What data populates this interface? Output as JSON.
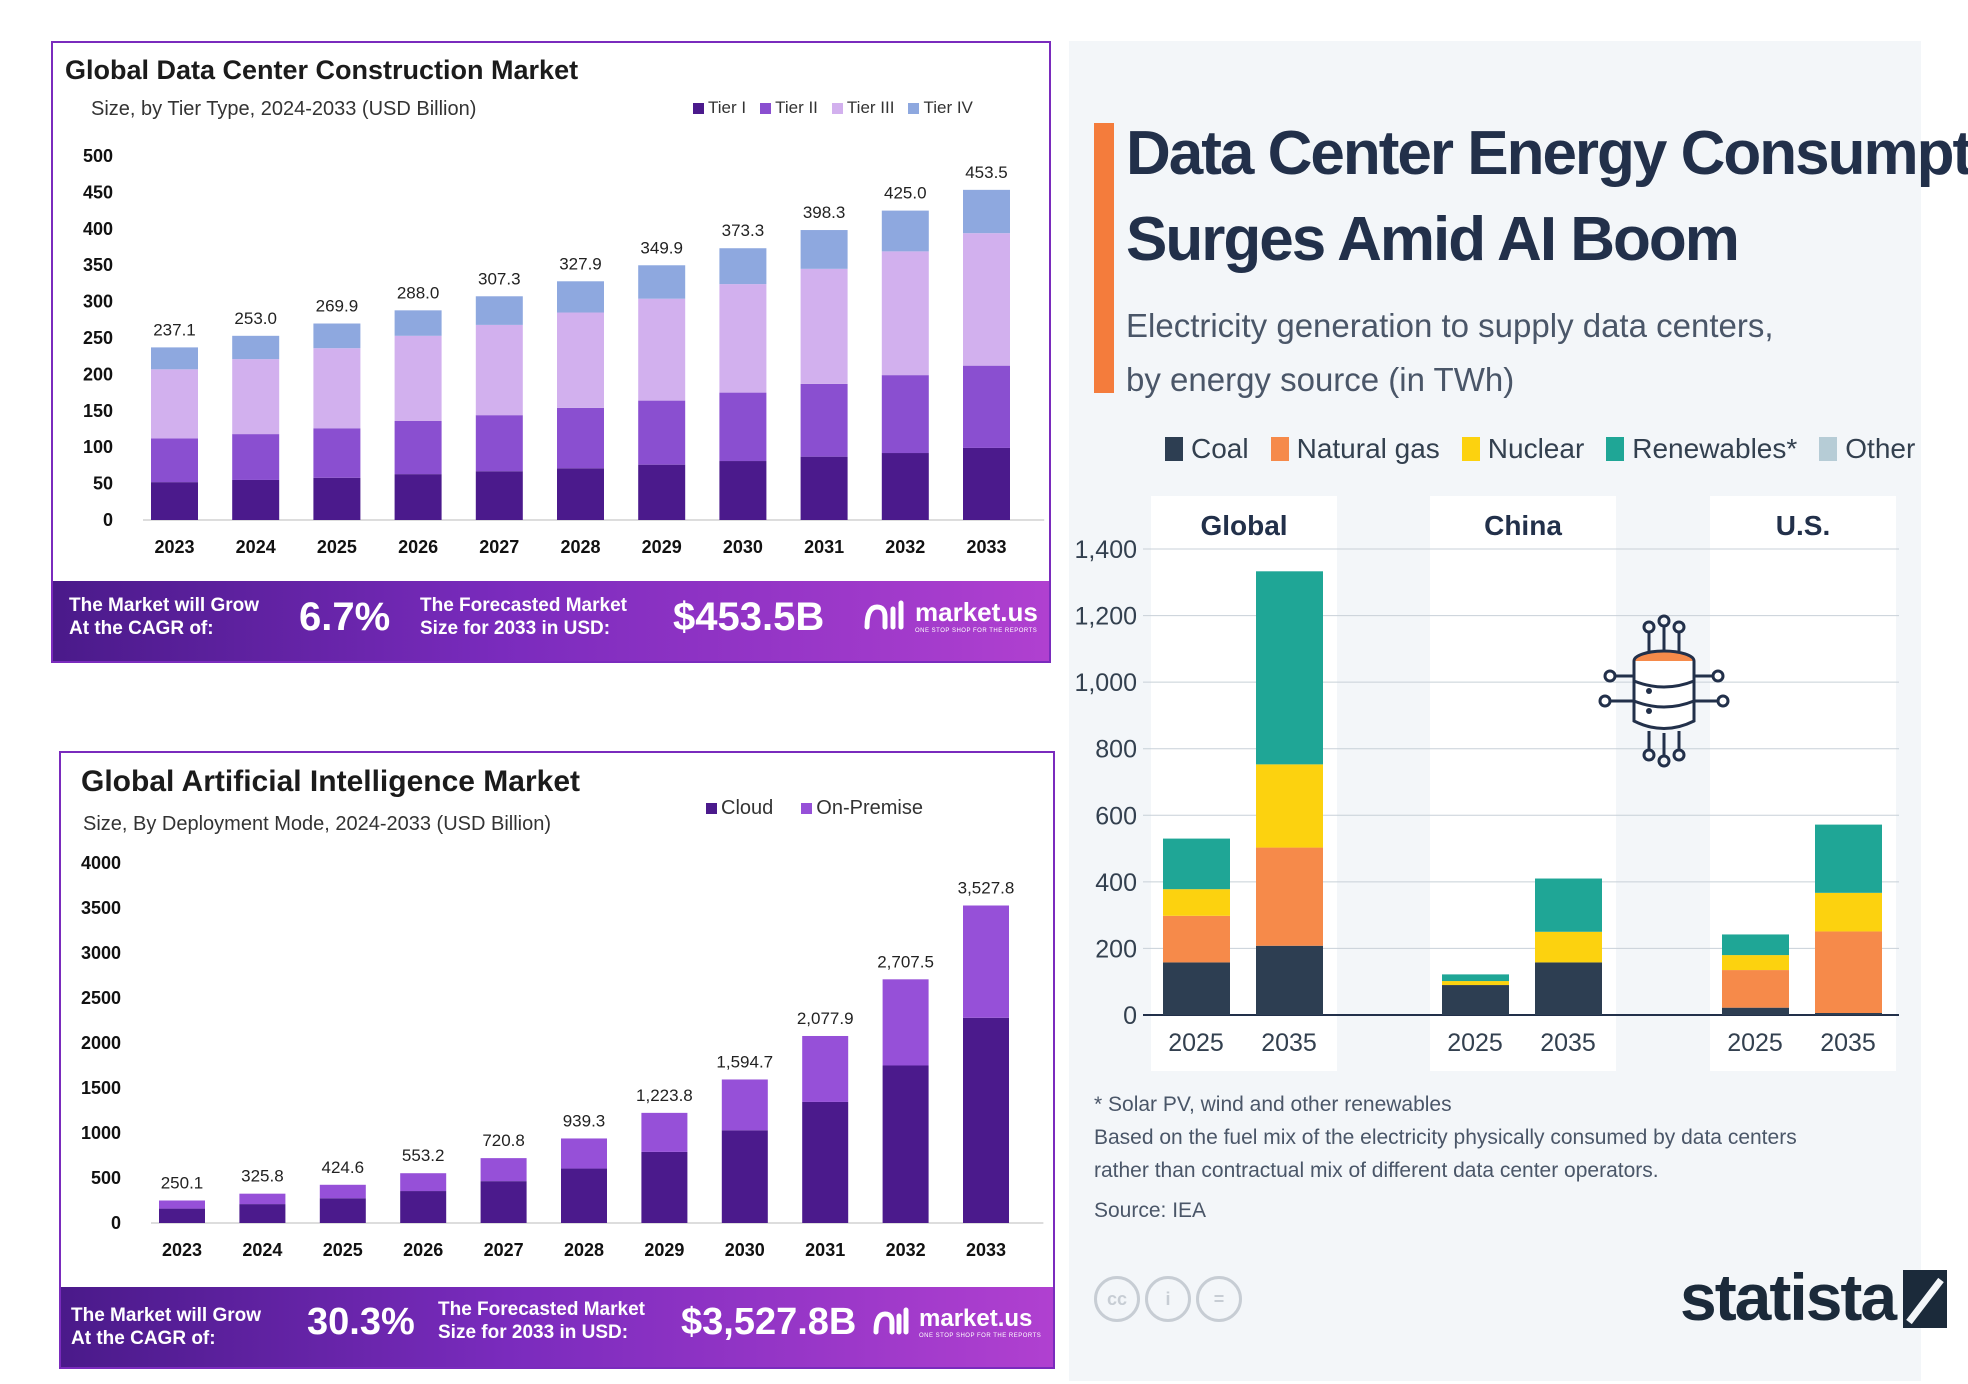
{
  "panel1": {
    "title": "Global Data Center Construction Market",
    "subtitle": "Size, by Tier Type, 2024-2033 (USD Billion)",
    "banner": {
      "grow_label_1": "The Market will Grow",
      "grow_label_2": "At the CAGR of:",
      "cagr": "6.7%",
      "size_label_1": "The Forecasted Market",
      "size_label_2": "Size for 2033 in USD:",
      "size": "$453.5B",
      "brand": "market.us",
      "tagline": "ONE STOP SHOP FOR THE REPORTS"
    }
  },
  "panel2": {
    "title": "Global Artificial Intelligence Market",
    "subtitle": "Size, By Deployment Mode, 2024-2033 (USD Billion)",
    "banner": {
      "grow_label_1": "The Market will Grow",
      "grow_label_2": "At the CAGR of:",
      "cagr": "30.3%",
      "size_label_1": "The Forecasted Market",
      "size_label_2": "Size for 2033 in USD:",
      "size": "$3,527.8B",
      "brand": "market.us",
      "tagline": "ONE STOP SHOP FOR THE REPORTS"
    }
  },
  "panel3": {
    "title_line1": "Data Center Energy Consumption",
    "title_line2": "Surges Amid AI Boom",
    "subtitle_line1": "Electricity generation to supply data centers,",
    "subtitle_line2": "by energy source (in TWh)",
    "note1": "* Solar PV, wind and other renewables",
    "note2": "Based on the fuel mix of the electricity physically consumed by data centers",
    "note3": "rather than contractual mix of different data center operators.",
    "source": "Source: IEA",
    "brand": "statista",
    "cc_icons": [
      "cc-icon",
      "attribution-icon",
      "no-derivatives-icon"
    ],
    "icon": "server-network-icon"
  },
  "colors": {
    "tier1": "#4b1a8c",
    "tier2": "#8a4fd0",
    "tier3": "#d2b0ee",
    "tier4": "#8ea8df",
    "cloud": "#4b1a8c",
    "onprem": "#9650d8",
    "coal": "#2d3e52",
    "gas": "#f68a4a",
    "nuclear": "#fcd20f",
    "renew": "#1fa696",
    "other": "#b6ccd6"
  },
  "chart_data": [
    {
      "type": "bar",
      "stacked": true,
      "categories": [
        "2023",
        "2024",
        "2025",
        "2026",
        "2027",
        "2028",
        "2029",
        "2030",
        "2031",
        "2032",
        "2033"
      ],
      "totals": [
        237.1,
        253.0,
        269.9,
        288.0,
        307.3,
        327.9,
        349.9,
        373.3,
        398.3,
        425.0,
        453.5
      ],
      "total_labels": [
        "237.1",
        "253.0",
        "269.9",
        "288.0",
        "307.3",
        "327.9",
        "349.9",
        "373.3",
        "398.3",
        "425.0",
        "453.5"
      ],
      "series": [
        {
          "name": "Tier I",
          "values": [
            52,
            55,
            58,
            63,
            67,
            71,
            76,
            81,
            87,
            92,
            99
          ]
        },
        {
          "name": "Tier II",
          "values": [
            60,
            63,
            68,
            73,
            77,
            83,
            88,
            94,
            100,
            107,
            113
          ]
        },
        {
          "name": "Tier III",
          "values": [
            95,
            103,
            110,
            117,
            124,
            131,
            140,
            149,
            158,
            170,
            182
          ]
        },
        {
          "name": "Tier IV",
          "values": [
            30.1,
            32,
            33.9,
            35,
            39.3,
            42.9,
            45.9,
            49.3,
            53.3,
            56,
            59.5
          ]
        }
      ],
      "yticks": [
        0,
        50,
        100,
        150,
        200,
        250,
        300,
        350,
        400,
        450,
        500
      ],
      "ylim": [
        0,
        500
      ],
      "legend_position": "top-right"
    },
    {
      "type": "bar",
      "stacked": true,
      "categories": [
        "2023",
        "2024",
        "2025",
        "2026",
        "2027",
        "2028",
        "2029",
        "2030",
        "2031",
        "2032",
        "2033"
      ],
      "totals": [
        250.1,
        325.8,
        424.6,
        553.2,
        720.8,
        939.3,
        1223.8,
        1594.7,
        2077.9,
        2707.5,
        3527.8
      ],
      "total_labels": [
        "250.1",
        "325.8",
        "424.6",
        "553.2",
        "720.8",
        "939.3",
        "1,223.8",
        "1,594.7",
        "2,077.9",
        "2,707.5",
        "3,527.8"
      ],
      "series": [
        {
          "name": "Cloud",
          "values": [
            160,
            210,
            275,
            355,
            465,
            605,
            790,
            1030,
            1345,
            1750,
            2280
          ]
        },
        {
          "name": "On-Premise",
          "values": [
            90.1,
            115.8,
            149.6,
            198.2,
            255.8,
            334.3,
            433.8,
            564.7,
            732.9,
            957.5,
            1247.8
          ]
        }
      ],
      "yticks": [
        0,
        500,
        1000,
        1500,
        2000,
        2500,
        3000,
        3500,
        4000
      ],
      "ylim": [
        0,
        4000
      ],
      "legend_position": "top-right"
    },
    {
      "type": "bar",
      "stacked": true,
      "groups": [
        "Global",
        "China",
        "U.S."
      ],
      "x": [
        "2025",
        "2035"
      ],
      "series": [
        {
          "name": "Coal",
          "values": [
            [
              158,
              208
            ],
            [
              90,
              158
            ],
            [
              22,
              6
            ]
          ]
        },
        {
          "name": "Natural gas",
          "values": [
            [
              140,
              295
            ],
            [
              0,
              0
            ],
            [
              113,
              245
            ]
          ]
        },
        {
          "name": "Nuclear",
          "values": [
            [
              80,
              250
            ],
            [
              12,
              92
            ],
            [
              45,
              116
            ]
          ]
        },
        {
          "name": "Renewables*",
          "values": [
            [
              152,
              580
            ],
            [
              20,
              160
            ],
            [
              62,
              205
            ]
          ]
        },
        {
          "name": "Other",
          "values": [
            [
              0,
              0
            ],
            [
              0,
              0
            ],
            [
              0,
              0
            ]
          ]
        }
      ],
      "yticks": [
        "0",
        "200",
        "400",
        "600",
        "800",
        "1,000",
        "1,200",
        "1,400"
      ],
      "ylim": [
        0,
        1400
      ],
      "grid": true,
      "legend_position": "top"
    }
  ]
}
